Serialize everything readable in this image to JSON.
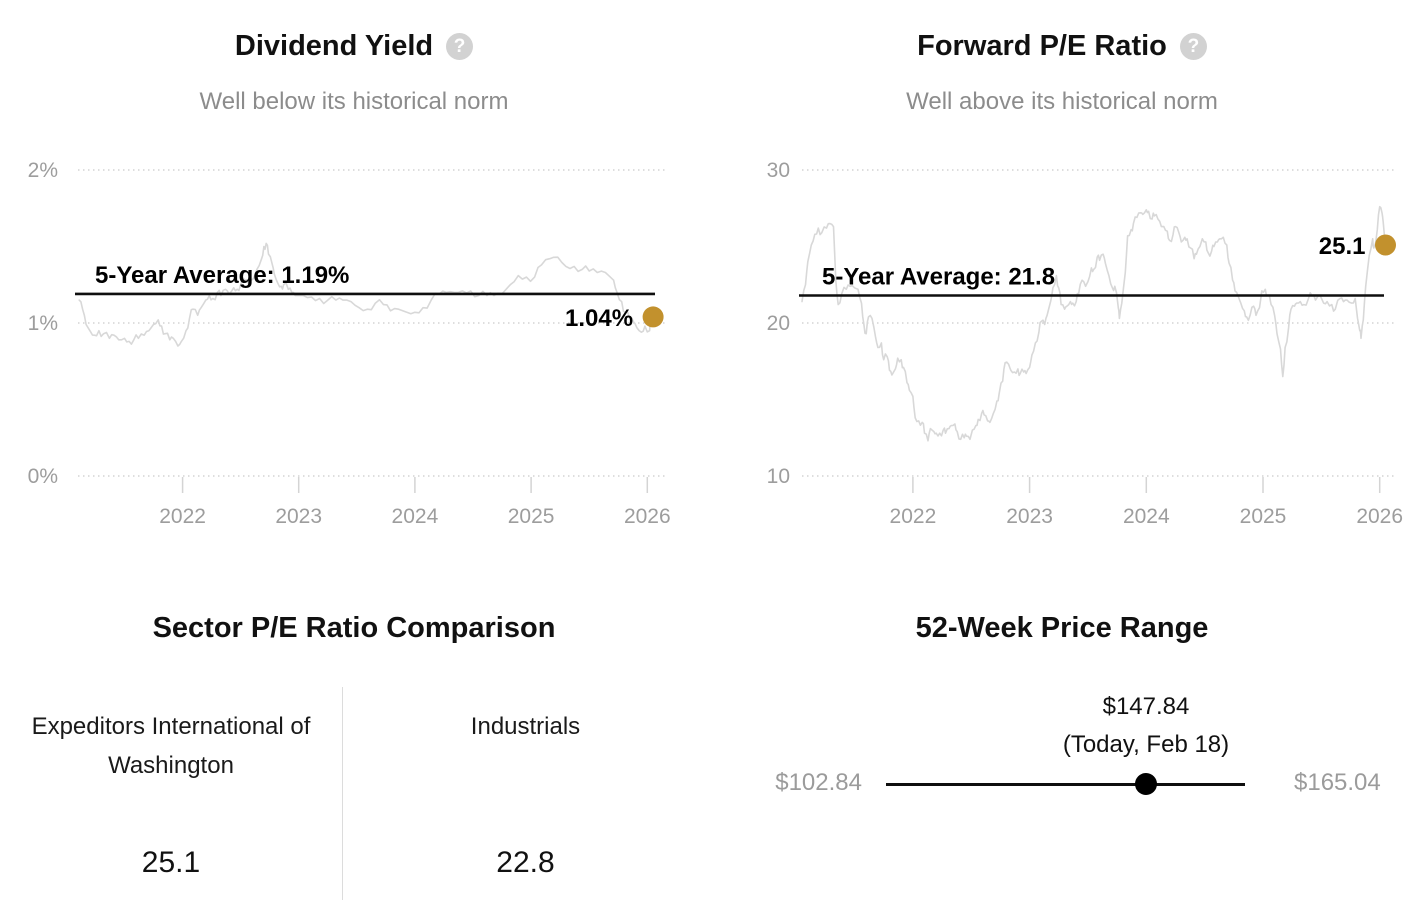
{
  "colors": {
    "accent_gold": "#C2912D",
    "line_gray": "#D8D8D8",
    "average_line": "#0F0F0F",
    "text_dark": "#1A1A1A",
    "text_gray": "#8C8C8C",
    "axis_gray": "#9D9D9D"
  },
  "chart_data": [
    {
      "id": "dividend_yield",
      "type": "line",
      "title": "Dividend Yield",
      "subtitle": "Well below its historical norm",
      "help_icon": "question-mark-icon",
      "xlim": [
        2021.1,
        2026.17
      ],
      "ylim": [
        0,
        2
      ],
      "grid": "dotted-horizontal",
      "legend": "none",
      "x_ticks": [
        2022,
        2023,
        2024,
        2025,
        2026
      ],
      "y_ticks": [
        {
          "value": 2,
          "label": "2%"
        },
        {
          "value": 1,
          "label": "1%"
        },
        {
          "value": 0,
          "label": "0%"
        }
      ],
      "average": 1.19,
      "average_label": "5-Year Average: 1.19%",
      "current": 1.04,
      "current_label": "1.04%",
      "line_color": "#D8D8D8",
      "marker_color": "#C2912D",
      "series": [
        [
          2021.11,
          1.15
        ],
        [
          2021.14,
          1.09
        ],
        [
          2021.17,
          0.99
        ],
        [
          2021.21,
          0.94
        ],
        [
          2021.24,
          0.92
        ],
        [
          2021.28,
          0.95
        ],
        [
          2021.32,
          0.93
        ],
        [
          2021.37,
          0.9
        ],
        [
          2021.41,
          0.92
        ],
        [
          2021.45,
          0.89
        ],
        [
          2021.5,
          0.9
        ],
        [
          2021.54,
          0.88
        ],
        [
          2021.58,
          0.89
        ],
        [
          2021.62,
          0.9
        ],
        [
          2021.67,
          0.92
        ],
        [
          2021.71,
          0.95
        ],
        [
          2021.75,
          0.99
        ],
        [
          2021.79,
          1.02
        ],
        [
          2021.82,
          0.98
        ],
        [
          2021.85,
          0.93
        ],
        [
          2021.89,
          0.89
        ],
        [
          2021.92,
          0.9
        ],
        [
          2021.96,
          0.85
        ],
        [
          2021.99,
          0.88
        ],
        [
          2022.03,
          0.95
        ],
        [
          2022.06,
          1.03
        ],
        [
          2022.09,
          1.09
        ],
        [
          2022.13,
          1.05
        ],
        [
          2022.16,
          1.1
        ],
        [
          2022.2,
          1.15
        ],
        [
          2022.23,
          1.18
        ],
        [
          2022.26,
          1.16
        ],
        [
          2022.3,
          1.2
        ],
        [
          2022.33,
          1.18
        ],
        [
          2022.37,
          1.22
        ],
        [
          2022.4,
          1.19
        ],
        [
          2022.44,
          1.23
        ],
        [
          2022.47,
          1.22
        ],
        [
          2022.5,
          1.25
        ],
        [
          2022.54,
          1.28
        ],
        [
          2022.57,
          1.25
        ],
        [
          2022.61,
          1.29
        ],
        [
          2022.64,
          1.35
        ],
        [
          2022.68,
          1.42
        ],
        [
          2022.7,
          1.5
        ],
        [
          2022.72,
          1.52
        ],
        [
          2022.74,
          1.45
        ],
        [
          2022.77,
          1.39
        ],
        [
          2022.79,
          1.32
        ],
        [
          2022.82,
          1.26
        ],
        [
          2022.85,
          1.24
        ],
        [
          2022.87,
          1.25
        ],
        [
          2022.91,
          1.22
        ],
        [
          2022.94,
          1.2
        ],
        [
          2022.97,
          1.18
        ],
        [
          2023.04,
          1.18
        ],
        [
          2023.11,
          1.17
        ],
        [
          2023.18,
          1.16
        ],
        [
          2023.25,
          1.15
        ],
        [
          2023.32,
          1.15
        ],
        [
          2023.38,
          1.15
        ],
        [
          2023.45,
          1.14
        ],
        [
          2023.52,
          1.1
        ],
        [
          2023.59,
          1.09
        ],
        [
          2023.66,
          1.13
        ],
        [
          2023.73,
          1.12
        ],
        [
          2023.79,
          1.08
        ],
        [
          2023.86,
          1.09
        ],
        [
          2023.93,
          1.07
        ],
        [
          2024.0,
          1.07
        ],
        [
          2024.07,
          1.1
        ],
        [
          2024.14,
          1.15
        ],
        [
          2024.21,
          1.19
        ],
        [
          2024.27,
          1.2
        ],
        [
          2024.34,
          1.2
        ],
        [
          2024.41,
          1.21
        ],
        [
          2024.48,
          1.21
        ],
        [
          2024.55,
          1.18
        ],
        [
          2024.62,
          1.18
        ],
        [
          2024.68,
          1.18
        ],
        [
          2024.75,
          1.19
        ],
        [
          2024.82,
          1.25
        ],
        [
          2024.89,
          1.31
        ],
        [
          2024.96,
          1.3
        ],
        [
          2025.03,
          1.3
        ],
        [
          2025.09,
          1.38
        ],
        [
          2025.16,
          1.42
        ],
        [
          2025.23,
          1.43
        ],
        [
          2025.3,
          1.37
        ],
        [
          2025.37,
          1.37
        ],
        [
          2025.44,
          1.35
        ],
        [
          2025.5,
          1.34
        ],
        [
          2025.57,
          1.33
        ],
        [
          2025.64,
          1.33
        ],
        [
          2025.71,
          1.28
        ],
        [
          2025.74,
          1.2
        ],
        [
          2025.78,
          1.14
        ],
        [
          2025.81,
          1.07
        ],
        [
          2025.85,
          1.03
        ],
        [
          2025.88,
          1.01
        ],
        [
          2025.91,
          0.97
        ],
        [
          2025.95,
          0.94
        ],
        [
          2025.98,
          0.98
        ],
        [
          2026.02,
          0.95
        ],
        [
          2026.03,
          1.01
        ],
        [
          2026.05,
          1.04
        ]
      ]
    },
    {
      "id": "forward_pe_ratio",
      "type": "line",
      "title": "Forward P/E Ratio",
      "subtitle": "Well above its historical norm",
      "help_icon": "question-mark-icon",
      "xlim": [
        2021.05,
        2026.14
      ],
      "ylim": [
        10,
        30
      ],
      "grid": "dotted-horizontal",
      "legend": "none",
      "x_ticks": [
        2022,
        2023,
        2024,
        2025,
        2026
      ],
      "y_ticks": [
        {
          "value": 30,
          "label": "30"
        },
        {
          "value": 20,
          "label": "20"
        },
        {
          "value": 10,
          "label": "10"
        }
      ],
      "average": 21.8,
      "average_label": "5-Year Average: 21.8",
      "current": 25.1,
      "current_label": "25.1",
      "line_color": "#D8D8D8",
      "marker_color": "#C2912D",
      "series": [
        [
          2021.05,
          21.4
        ],
        [
          2021.08,
          22.5
        ],
        [
          2021.1,
          24.0
        ],
        [
          2021.13,
          25.1
        ],
        [
          2021.16,
          25.8
        ],
        [
          2021.19,
          26.2
        ],
        [
          2021.22,
          25.9
        ],
        [
          2021.26,
          26.2
        ],
        [
          2021.29,
          26.5
        ],
        [
          2021.32,
          26.3
        ],
        [
          2021.34,
          22.8
        ],
        [
          2021.36,
          21.2
        ],
        [
          2021.39,
          21.9
        ],
        [
          2021.43,
          22.2
        ],
        [
          2021.46,
          22.4
        ],
        [
          2021.5,
          22.3
        ],
        [
          2021.53,
          22.2
        ],
        [
          2021.56,
          21.3
        ],
        [
          2021.58,
          19.9
        ],
        [
          2021.6,
          19.3
        ],
        [
          2021.62,
          20.4
        ],
        [
          2021.65,
          20.3
        ],
        [
          2021.68,
          19.1
        ],
        [
          2021.7,
          18.4
        ],
        [
          2021.73,
          18.7
        ],
        [
          2021.75,
          17.6
        ],
        [
          2021.78,
          17.8
        ],
        [
          2021.8,
          16.9
        ],
        [
          2021.82,
          16.6
        ],
        [
          2021.85,
          17.0
        ],
        [
          2021.87,
          17.7
        ],
        [
          2021.9,
          17.6
        ],
        [
          2021.92,
          17.1
        ],
        [
          2021.95,
          16.1
        ],
        [
          2021.97,
          15.6
        ],
        [
          2022.0,
          15.2
        ],
        [
          2022.02,
          13.8
        ],
        [
          2022.05,
          13.6
        ],
        [
          2022.08,
          13.5
        ],
        [
          2022.1,
          12.8
        ],
        [
          2022.13,
          12.3
        ],
        [
          2022.15,
          13.1
        ],
        [
          2022.18,
          12.9
        ],
        [
          2022.2,
          12.8
        ],
        [
          2022.23,
          12.8
        ],
        [
          2022.26,
          13.0
        ],
        [
          2022.28,
          12.8
        ],
        [
          2022.31,
          13.1
        ],
        [
          2022.33,
          13.3
        ],
        [
          2022.36,
          13.4
        ],
        [
          2022.38,
          12.9
        ],
        [
          2022.41,
          12.4
        ],
        [
          2022.44,
          12.5
        ],
        [
          2022.46,
          12.6
        ],
        [
          2022.49,
          12.4
        ],
        [
          2022.51,
          13.0
        ],
        [
          2022.54,
          13.3
        ],
        [
          2022.56,
          13.7
        ],
        [
          2022.59,
          14.1
        ],
        [
          2022.61,
          14.0
        ],
        [
          2022.64,
          13.6
        ],
        [
          2022.66,
          13.5
        ],
        [
          2022.69,
          14.1
        ],
        [
          2022.72,
          14.9
        ],
        [
          2022.74,
          15.4
        ],
        [
          2022.77,
          16.2
        ],
        [
          2022.79,
          17.4
        ],
        [
          2022.82,
          17.3
        ],
        [
          2022.84,
          16.9
        ],
        [
          2022.87,
          16.8
        ],
        [
          2022.9,
          17.0
        ],
        [
          2022.92,
          16.7
        ],
        [
          2022.95,
          16.8
        ],
        [
          2022.97,
          16.7
        ],
        [
          2023.0,
          17.1
        ],
        [
          2023.02,
          17.9
        ],
        [
          2023.05,
          18.7
        ],
        [
          2023.08,
          19.4
        ],
        [
          2023.1,
          20.1
        ],
        [
          2023.13,
          19.9
        ],
        [
          2023.15,
          20.5
        ],
        [
          2023.18,
          21.4
        ],
        [
          2023.2,
          22.3
        ],
        [
          2023.23,
          23.1
        ],
        [
          2023.25,
          22.3
        ],
        [
          2023.27,
          21.2
        ],
        [
          2023.3,
          20.9
        ],
        [
          2023.32,
          21.1
        ],
        [
          2023.35,
          21.4
        ],
        [
          2023.37,
          21.3
        ],
        [
          2023.4,
          21.4
        ],
        [
          2023.42,
          21.9
        ],
        [
          2023.45,
          22.8
        ],
        [
          2023.48,
          22.4
        ],
        [
          2023.5,
          22.7
        ],
        [
          2023.53,
          23.6
        ],
        [
          2023.55,
          23.5
        ],
        [
          2023.58,
          24.3
        ],
        [
          2023.6,
          24.1
        ],
        [
          2023.63,
          24.5
        ],
        [
          2023.65,
          23.9
        ],
        [
          2023.68,
          23.1
        ],
        [
          2023.71,
          22.3
        ],
        [
          2023.73,
          22.4
        ],
        [
          2023.76,
          21.0
        ],
        [
          2023.77,
          20.3
        ],
        [
          2023.79,
          21.3
        ],
        [
          2023.82,
          23.3
        ],
        [
          2023.84,
          25.7
        ],
        [
          2023.87,
          26.1
        ],
        [
          2023.89,
          26.5
        ],
        [
          2023.92,
          26.9
        ],
        [
          2023.95,
          27.2
        ],
        [
          2023.97,
          27.1
        ],
        [
          2024.0,
          27.4
        ],
        [
          2024.02,
          27.3
        ],
        [
          2024.05,
          26.8
        ],
        [
          2024.07,
          27.0
        ],
        [
          2024.1,
          26.8
        ],
        [
          2024.13,
          26.3
        ],
        [
          2024.15,
          26.3
        ],
        [
          2024.18,
          26.0
        ],
        [
          2024.2,
          25.4
        ],
        [
          2024.23,
          25.8
        ],
        [
          2024.25,
          26.3
        ],
        [
          2024.28,
          25.9
        ],
        [
          2024.3,
          25.3
        ],
        [
          2024.33,
          25.6
        ],
        [
          2024.35,
          25.5
        ],
        [
          2024.38,
          24.9
        ],
        [
          2024.41,
          24.2
        ],
        [
          2024.43,
          24.5
        ],
        [
          2024.46,
          25.0
        ],
        [
          2024.48,
          25.5
        ],
        [
          2024.51,
          25.3
        ],
        [
          2024.53,
          24.6
        ],
        [
          2024.56,
          24.7
        ],
        [
          2024.58,
          25.0
        ],
        [
          2024.61,
          25.3
        ],
        [
          2024.63,
          25.5
        ],
        [
          2024.66,
          25.6
        ],
        [
          2024.69,
          25.1
        ],
        [
          2024.71,
          23.9
        ],
        [
          2024.74,
          22.8
        ],
        [
          2024.76,
          22.1
        ],
        [
          2024.79,
          21.7
        ],
        [
          2024.81,
          21.3
        ],
        [
          2024.84,
          20.8
        ],
        [
          2024.86,
          20.4
        ],
        [
          2024.89,
          20.5
        ],
        [
          2024.92,
          21.1
        ],
        [
          2024.94,
          20.5
        ],
        [
          2024.97,
          21.0
        ],
        [
          2024.99,
          22.1
        ],
        [
          2025.02,
          22.2
        ],
        [
          2025.04,
          21.8
        ],
        [
          2025.07,
          21.2
        ],
        [
          2025.1,
          20.5
        ],
        [
          2025.12,
          19.3
        ],
        [
          2025.15,
          18.3
        ],
        [
          2025.17,
          16.5
        ],
        [
          2025.19,
          18.4
        ],
        [
          2025.22,
          19.7
        ],
        [
          2025.24,
          20.9
        ],
        [
          2025.27,
          21.1
        ],
        [
          2025.29,
          21.3
        ],
        [
          2025.32,
          21.4
        ],
        [
          2025.35,
          21.2
        ],
        [
          2025.39,
          21.6
        ],
        [
          2025.42,
          21.8
        ],
        [
          2025.45,
          21.5
        ],
        [
          2025.49,
          21.8
        ],
        [
          2025.52,
          21.3
        ],
        [
          2025.55,
          21.4
        ],
        [
          2025.59,
          21.2
        ],
        [
          2025.62,
          20.9
        ],
        [
          2025.66,
          21.6
        ],
        [
          2025.69,
          21.4
        ],
        [
          2025.72,
          21.5
        ],
        [
          2025.76,
          21.3
        ],
        [
          2025.79,
          21.6
        ],
        [
          2025.83,
          19.5
        ],
        [
          2025.84,
          19.0
        ],
        [
          2025.86,
          20.2
        ],
        [
          2025.88,
          22.4
        ],
        [
          2025.91,
          24.4
        ],
        [
          2025.94,
          25.5
        ],
        [
          2025.95,
          24.9
        ],
        [
          2025.98,
          26.1
        ],
        [
          2026.0,
          27.6
        ],
        [
          2026.02,
          27.2
        ],
        [
          2026.03,
          26.6
        ],
        [
          2026.05,
          25.1
        ]
      ]
    },
    {
      "id": "sector_pe_comparison",
      "type": "table",
      "title": "Sector P/E Ratio Comparison",
      "columns": [
        {
          "label": "Expeditors International of Washington",
          "value": "25.1"
        },
        {
          "label": "Industrials",
          "value": "22.8"
        }
      ]
    },
    {
      "id": "price_range_52_week",
      "type": "range",
      "title": "52-Week Price Range",
      "low": 102.84,
      "high": 165.04,
      "current": 147.84,
      "low_label": "$102.84",
      "high_label": "$165.04",
      "current_label": "$147.84",
      "current_caption": "(Today, Feb 18)"
    }
  ],
  "help_label": "?"
}
